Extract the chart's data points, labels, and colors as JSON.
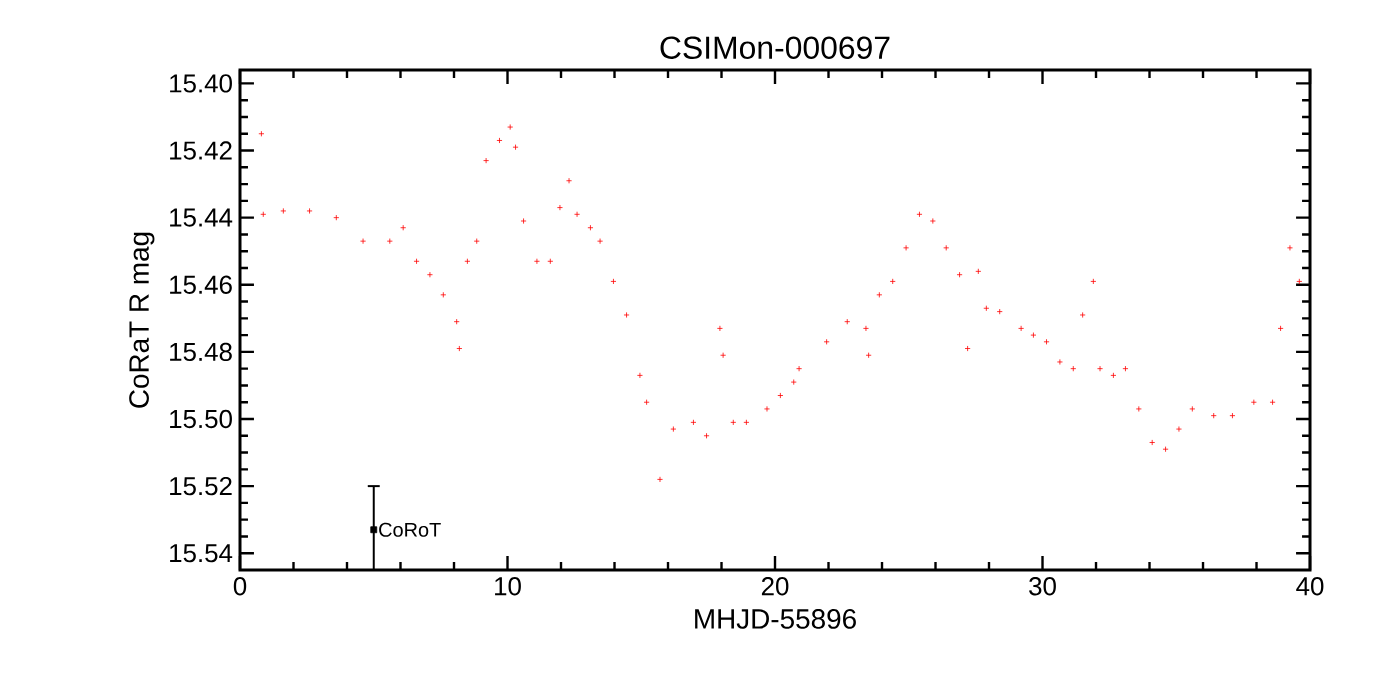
{
  "chart_data": {
    "type": "scatter",
    "title": "CSIMon-000697",
    "xlabel": "MHJD-55896",
    "ylabel": "CoRaT R mag",
    "xlim": [
      0,
      40
    ],
    "xticks": [
      0,
      10,
      20,
      30,
      40
    ],
    "ylim": [
      15.545,
      15.396
    ],
    "yticks": [
      {
        "value": 15.4,
        "label": "15.40"
      },
      {
        "value": 15.42,
        "label": "15.42"
      },
      {
        "value": 15.44,
        "label": "15.44"
      },
      {
        "value": 15.46,
        "label": "15.46"
      },
      {
        "value": 15.48,
        "label": "15.48"
      },
      {
        "value": 15.5,
        "label": "15.50"
      },
      {
        "value": 15.52,
        "label": "15.52"
      },
      {
        "value": 15.54,
        "label": "15.54"
      }
    ],
    "marker": "cross",
    "series": [
      {
        "color": "#ff0000",
        "x": [
          0.8,
          0.87,
          1.62,
          2.6,
          3.6,
          4.6,
          5.6,
          6.1,
          6.6,
          7.1,
          7.6,
          8.1,
          8.2,
          8.5,
          8.85,
          9.2,
          9.7,
          10.1,
          10.3,
          10.6,
          11.1,
          11.6,
          11.96,
          12.3,
          12.6,
          13.1,
          13.46,
          13.96,
          14.45,
          14.95,
          15.2,
          15.7,
          16.2,
          16.95,
          17.44,
          17.94,
          18.06,
          18.44,
          18.93,
          19.7,
          20.2,
          20.7,
          20.9,
          21.93,
          22.7,
          23.4,
          23.5,
          23.9,
          24.4,
          24.9,
          25.4,
          25.9,
          26.4,
          26.9,
          27.2,
          27.6,
          27.9,
          28.4,
          29.2,
          29.66,
          30.15,
          30.65,
          31.15,
          31.5,
          31.9,
          32.15,
          32.65,
          33.1,
          33.6,
          34.1,
          34.6,
          35.1,
          35.6,
          36.4,
          37.1,
          37.9,
          38.6,
          38.9,
          39.25,
          39.6
        ],
        "values": [
          15.415,
          15.439,
          15.438,
          15.438,
          15.44,
          15.447,
          15.447,
          15.443,
          15.453,
          15.457,
          15.463,
          15.471,
          15.479,
          15.453,
          15.447,
          15.423,
          15.417,
          15.413,
          15.419,
          15.441,
          15.453,
          15.453,
          15.437,
          15.429,
          15.439,
          15.443,
          15.447,
          15.459,
          15.469,
          15.487,
          15.495,
          15.518,
          15.503,
          15.501,
          15.505,
          15.473,
          15.481,
          15.501,
          15.501,
          15.497,
          15.493,
          15.489,
          15.485,
          15.477,
          15.471,
          15.473,
          15.481,
          15.463,
          15.459,
          15.449,
          15.439,
          15.441,
          15.449,
          15.457,
          15.479,
          15.456,
          15.467,
          15.468,
          15.473,
          15.475,
          15.477,
          15.483,
          15.485,
          15.469,
          15.459,
          15.485,
          15.487,
          15.485,
          15.497,
          15.507,
          15.509,
          15.503,
          15.497,
          15.499,
          15.499,
          15.495,
          15.495,
          15.473,
          15.449,
          15.459
        ]
      },
      {
        "name": "CoRoT",
        "color": "#000000",
        "marker": "square",
        "x": [
          5
        ],
        "values": [
          15.533
        ],
        "errors": [
          [
            15.52,
            15.545
          ]
        ]
      }
    ]
  }
}
